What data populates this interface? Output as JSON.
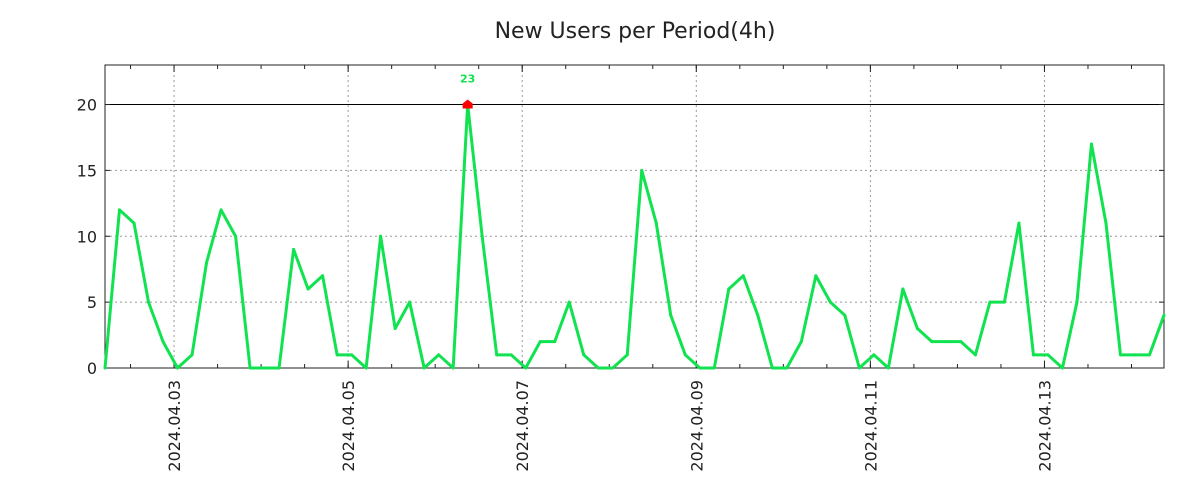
{
  "chart_data": {
    "type": "line",
    "title": "New Users per Period(4h)",
    "xlabel": "",
    "ylabel": "",
    "ylim": [
      0,
      23
    ],
    "display_cap": 20,
    "grid": true,
    "line_color": "#11e350",
    "marker_color": "#ff0000",
    "yticks": [
      0,
      5,
      10,
      15,
      20
    ],
    "xticks": [
      {
        "label": "2024.04.03",
        "index": 4.76
      },
      {
        "label": "2024.04.05",
        "index": 16.76
      },
      {
        "label": "2024.04.07",
        "index": 28.76
      },
      {
        "label": "2024.04.09",
        "index": 40.76
      },
      {
        "label": "2024.04.11",
        "index": 52.76
      },
      {
        "label": "2024.04.13",
        "index": 64.76
      }
    ],
    "series": [
      {
        "name": "New Users",
        "values": [
          0,
          12,
          11,
          5,
          2,
          0,
          1,
          8,
          12,
          10,
          0,
          0,
          0,
          9,
          6,
          7,
          1,
          1,
          0,
          10,
          3,
          5,
          0,
          1,
          0,
          23,
          10,
          1,
          1,
          0,
          2,
          2,
          5,
          1,
          0,
          0,
          1,
          15,
          11,
          4,
          1,
          0,
          0,
          6,
          7,
          4,
          0,
          0,
          2,
          7,
          5,
          4,
          0,
          1,
          0,
          6,
          3,
          2,
          2,
          2,
          1,
          5,
          5,
          11,
          1,
          1,
          0,
          5,
          17,
          11,
          1,
          1,
          1,
          4
        ]
      }
    ],
    "annotations": [
      {
        "index": 25,
        "text": "23"
      }
    ]
  }
}
